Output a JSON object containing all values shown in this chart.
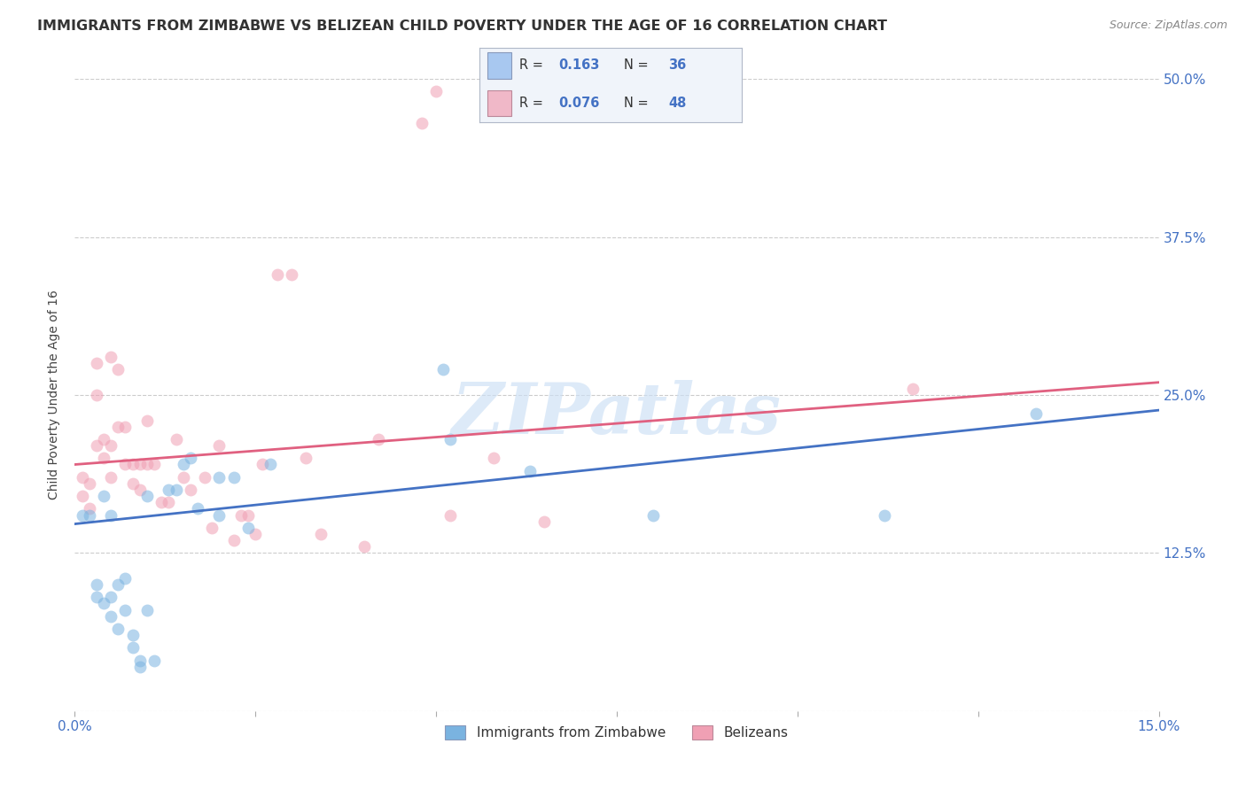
{
  "title": "IMMIGRANTS FROM ZIMBABWE VS BELIZEAN CHILD POVERTY UNDER THE AGE OF 16 CORRELATION CHART",
  "source": "Source: ZipAtlas.com",
  "ylabel": "Child Poverty Under the Age of 16",
  "ytick_values": [
    0.0,
    0.125,
    0.25,
    0.375,
    0.5
  ],
  "ytick_labels": [
    "",
    "12.5%",
    "25.0%",
    "37.5%",
    "50.0%"
  ],
  "xlim": [
    0.0,
    0.15
  ],
  "ylim": [
    0.0,
    0.5
  ],
  "bottom_legend": [
    "Immigrants from Zimbabwe",
    "Belizeans"
  ],
  "watermark": "ZIPatlas",
  "blue_scatter_x": [
    0.001,
    0.002,
    0.003,
    0.003,
    0.004,
    0.004,
    0.005,
    0.005,
    0.005,
    0.006,
    0.006,
    0.007,
    0.007,
    0.008,
    0.008,
    0.009,
    0.009,
    0.01,
    0.01,
    0.011,
    0.013,
    0.014,
    0.015,
    0.016,
    0.017,
    0.02,
    0.02,
    0.022,
    0.024,
    0.027,
    0.051,
    0.052,
    0.063,
    0.08,
    0.112,
    0.133
  ],
  "blue_scatter_y": [
    0.155,
    0.155,
    0.1,
    0.09,
    0.085,
    0.17,
    0.155,
    0.09,
    0.075,
    0.065,
    0.1,
    0.105,
    0.08,
    0.06,
    0.05,
    0.04,
    0.035,
    0.17,
    0.08,
    0.04,
    0.175,
    0.175,
    0.195,
    0.2,
    0.16,
    0.185,
    0.155,
    0.185,
    0.145,
    0.195,
    0.27,
    0.215,
    0.19,
    0.155,
    0.155,
    0.235
  ],
  "pink_scatter_x": [
    0.001,
    0.001,
    0.002,
    0.002,
    0.003,
    0.003,
    0.003,
    0.004,
    0.004,
    0.005,
    0.005,
    0.005,
    0.006,
    0.006,
    0.007,
    0.007,
    0.008,
    0.008,
    0.009,
    0.009,
    0.01,
    0.01,
    0.011,
    0.012,
    0.013,
    0.014,
    0.015,
    0.016,
    0.018,
    0.019,
    0.02,
    0.022,
    0.023,
    0.024,
    0.025,
    0.026,
    0.028,
    0.03,
    0.032,
    0.034,
    0.04,
    0.042,
    0.048,
    0.05,
    0.052,
    0.058,
    0.065,
    0.116
  ],
  "pink_scatter_y": [
    0.17,
    0.185,
    0.18,
    0.16,
    0.275,
    0.25,
    0.21,
    0.215,
    0.2,
    0.28,
    0.21,
    0.185,
    0.27,
    0.225,
    0.225,
    0.195,
    0.195,
    0.18,
    0.195,
    0.175,
    0.195,
    0.23,
    0.195,
    0.165,
    0.165,
    0.215,
    0.185,
    0.175,
    0.185,
    0.145,
    0.21,
    0.135,
    0.155,
    0.155,
    0.14,
    0.195,
    0.345,
    0.345,
    0.2,
    0.14,
    0.13,
    0.215,
    0.465,
    0.49,
    0.155,
    0.2,
    0.15,
    0.255
  ],
  "blue_line_x": [
    0.0,
    0.15
  ],
  "blue_line_y": [
    0.148,
    0.238
  ],
  "pink_line_x": [
    0.0,
    0.15
  ],
  "pink_line_y": [
    0.195,
    0.26
  ],
  "scatter_size": 100,
  "scatter_alpha": 0.55,
  "blue_color": "#7ab3e0",
  "pink_color": "#f0a0b4",
  "blue_line_color": "#4472c4",
  "pink_line_color": "#e06080",
  "grid_color": "#cccccc",
  "background_color": "#ffffff",
  "title_fontsize": 11.5,
  "axis_label_color": "#4472c4",
  "legend_r_color": "#4472c4",
  "legend_n_color": "#4472c4",
  "legend_blue_fill": "#a8c8f0",
  "legend_pink_fill": "#f0b8c8"
}
